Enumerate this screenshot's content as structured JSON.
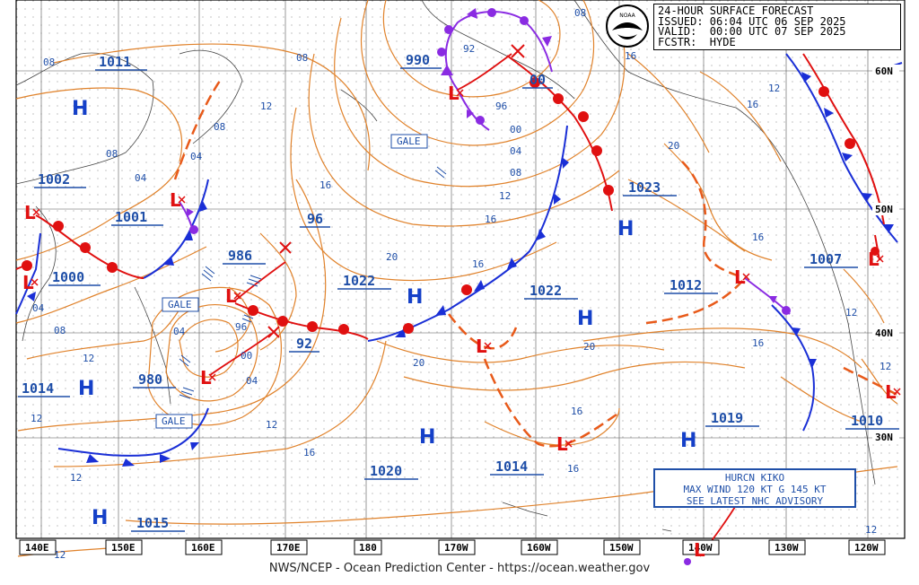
{
  "header": {
    "line1": "24-HOUR SURFACE FORECAST",
    "line2": "ISSUED: 06:04 UTC 06 SEP 2025",
    "line3": "VALID:  00:00 UTC 07 SEP 2025",
    "line4": "FCSTR:  HYDE",
    "logo": "NOAA"
  },
  "hurricane": {
    "line1": "HURCN KIKO",
    "line2": "MAX WIND 120 KT G 145 KT",
    "line3": "SEE LATEST NHC ADVISORY"
  },
  "credit": "NWS/NCEP - Ocean Prediction Center - https://ocean.weather.gov",
  "longitudes": [
    "140E",
    "150E",
    "160E",
    "170E",
    "180",
    "170W",
    "160W",
    "150W",
    "140W",
    "130W",
    "120W"
  ],
  "latitudes": [
    "60N",
    "50N",
    "40N",
    "30N"
  ],
  "pressures": {
    "p1011": "1011",
    "p1002": "1002",
    "p1001": "1001",
    "p1000": "1000",
    "p986": "986",
    "p980": "980",
    "p1014a": "1014",
    "p990": "990",
    "p00a": "00",
    "p96a": "96",
    "p92a": "92",
    "p1022a": "1022",
    "p1022b": "1022",
    "p1023": "1023",
    "p1012": "1012",
    "p1007": "1007",
    "p1019": "1019",
    "p1010": "1010",
    "p1020": "1020",
    "p1014b": "1014",
    "p1015": "1015"
  },
  "isobar_labels": {
    "i08a": "08",
    "i08b": "08",
    "i08c": "08",
    "i08d": "08",
    "i08e": "08",
    "i04a": "04",
    "i04b": "04",
    "i04c": "04",
    "i04d": "04",
    "i04e": "04",
    "i04f": "04",
    "i12a": "12",
    "i12b": "12",
    "i12c": "12",
    "i12d": "12",
    "i12e": "12",
    "i12f": "12",
    "i12g": "12",
    "i12h": "12",
    "i12i": "12",
    "i12j": "12",
    "i16a": "16",
    "i16b": "16",
    "i16c": "16",
    "i16d": "16",
    "i16e": "16",
    "i16f": "16",
    "i16g": "16",
    "i16h": "16",
    "i16i": "16",
    "i16j": "16",
    "i20a": "20",
    "i20b": "20",
    "i20c": "20",
    "i20d": "20",
    "i92": "92",
    "i96b": "96",
    "i96c": "96",
    "i00b": "00",
    "i00c": "00",
    "i04g": "04",
    "i08f": "08"
  },
  "gale": [
    "GALE",
    "GALE",
    "GALE"
  ],
  "highs": [
    "H",
    "H",
    "H",
    "H",
    "H",
    "H",
    "H",
    "H",
    "H"
  ],
  "lows": [
    "L",
    "L",
    "L",
    "L",
    "L",
    "L",
    "L",
    "L",
    "L",
    "L",
    "L",
    "L"
  ]
}
